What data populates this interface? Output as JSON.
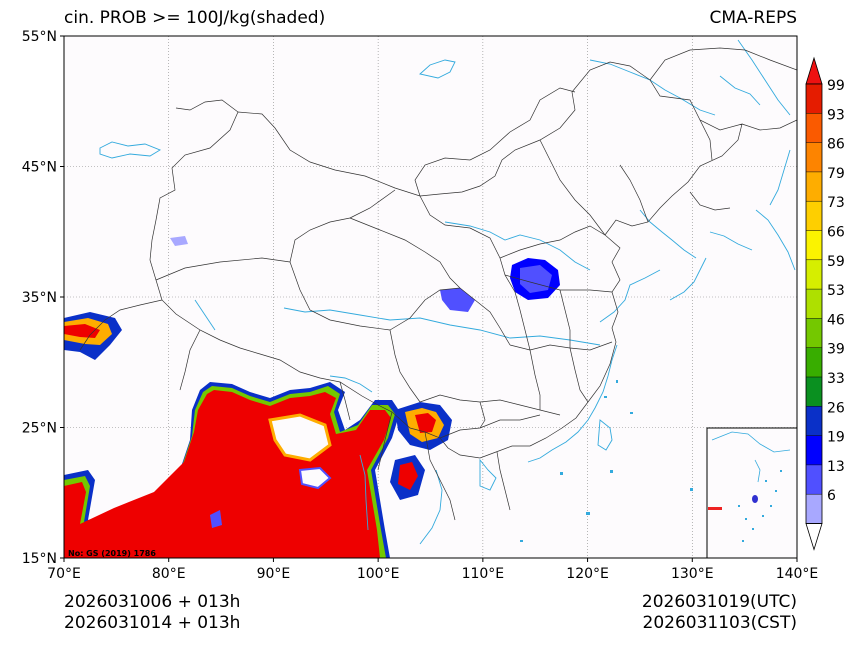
{
  "header": {
    "title": "cin. PROB >= 100J/kg(shaded)",
    "model": "CMA-REPS"
  },
  "map": {
    "lon_ticks": [
      {
        "value": 70,
        "label": "70°E"
      },
      {
        "value": 80,
        "label": "80°E"
      },
      {
        "value": 90,
        "label": "90°E"
      },
      {
        "value": 100,
        "label": "100°E"
      },
      {
        "value": 110,
        "label": "110°E"
      },
      {
        "value": 120,
        "label": "120°E"
      },
      {
        "value": 130,
        "label": "130°E"
      },
      {
        "value": 140,
        "label": "140°E"
      }
    ],
    "lat_ticks": [
      {
        "value": 55,
        "label": "55°N"
      },
      {
        "value": 45,
        "label": "45°N"
      },
      {
        "value": 35,
        "label": "35°N"
      },
      {
        "value": 25,
        "label": "25°N"
      },
      {
        "value": 15,
        "label": "15°N"
      }
    ],
    "extent": {
      "lon": [
        70,
        140
      ],
      "lat": [
        15,
        55
      ]
    },
    "map_credit": "No: GS (2019) 1786",
    "colors": {
      "land_bg": "#fdfbfd",
      "border": "#333333",
      "river": "#33aadd",
      "grid": "#888888"
    }
  },
  "colorbar": {
    "levels": [
      "99",
      "93",
      "86",
      "79",
      "73",
      "66",
      "59",
      "53",
      "46",
      "39",
      "33",
      "26",
      "19",
      "13",
      "6"
    ],
    "colors": [
      "#e51c00",
      "#fa5a00",
      "#fd8400",
      "#fead00",
      "#fecf00",
      "#fbf300",
      "#d6ee00",
      "#aee000",
      "#74c800",
      "#38ad00",
      "#0a9020",
      "#0a30c8",
      "#0000ff",
      "#5050ff",
      "#a8a8ff"
    ],
    "over_color": "#ee1111",
    "under_color": "#ffffff"
  },
  "footer": {
    "init_utc": "2026031006  +  013h",
    "init_cst": "2026031014  +  013h",
    "valid_utc": "2026031019(UTC)",
    "valid_cst": "2026031103(CST)"
  }
}
